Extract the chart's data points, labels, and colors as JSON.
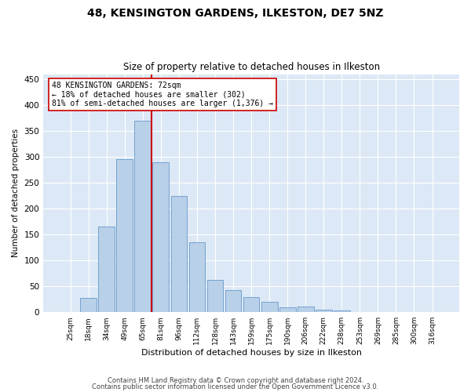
{
  "title1": "48, KENSINGTON GARDENS, ILKESTON, DE7 5NZ",
  "title2": "Size of property relative to detached houses in Ilkeston",
  "xlabel": "Distribution of detached houses by size in Ilkeston",
  "ylabel": "Number of detached properties",
  "categories": [
    "25sqm",
    "18sqm",
    "34sqm",
    "49sqm",
    "65sqm",
    "81sqm",
    "96sqm",
    "112sqm",
    "128sqm",
    "143sqm",
    "159sqm",
    "175sqm",
    "190sqm",
    "206sqm",
    "222sqm",
    "238sqm",
    "253sqm",
    "269sqm",
    "285sqm",
    "300sqm",
    "316sqm"
  ],
  "bar_values": [
    1,
    28,
    165,
    295,
    370,
    290,
    225,
    135,
    62,
    42,
    29,
    20,
    10,
    11,
    5,
    3,
    1,
    1,
    0,
    0,
    0
  ],
  "bar_color": "#b8d0e8",
  "bar_edge_color": "#6699cc",
  "annotation_text": "48 KENSINGTON GARDENS: 72sqm\n← 18% of detached houses are smaller (302)\n81% of semi-detached houses are larger (1,376) →",
  "vline_color": "#cc0000",
  "annotation_box_facecolor": "#ffffff",
  "annotation_box_edgecolor": "#cc0000",
  "ylim": [
    0,
    460
  ],
  "yticks": [
    0,
    50,
    100,
    150,
    200,
    250,
    300,
    350,
    400,
    450
  ],
  "footer1": "Contains HM Land Registry data © Crown copyright and database right 2024.",
  "footer2": "Contains public sector information licensed under the Open Government Licence v3.0.",
  "bg_color": "#dce8f5",
  "fig_bg_color": "#ffffff",
  "vline_bar_index": 5,
  "annot_fontsize": 7.0,
  "title1_fontsize": 10,
  "title2_fontsize": 8.5
}
